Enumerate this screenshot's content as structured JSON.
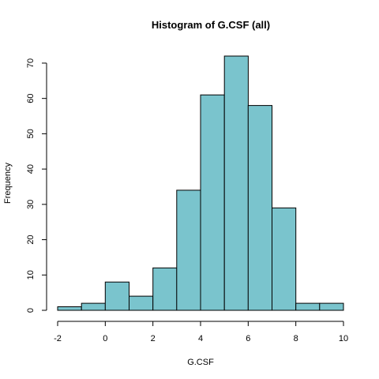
{
  "chart_data": {
    "type": "bar",
    "title": "Histogram of G.CSF (all)",
    "xlabel": "G.CSF",
    "ylabel": "Frequency",
    "bin_edges": [
      -2,
      -1,
      0,
      1,
      2,
      3,
      4,
      5,
      6,
      7,
      8,
      9,
      10
    ],
    "values": [
      1,
      2,
      8,
      4,
      12,
      34,
      61,
      72,
      58,
      29,
      2,
      2
    ],
    "xlim": [
      -2,
      10
    ],
    "ylim": [
      0,
      72
    ],
    "x_ticks": [
      -2,
      0,
      2,
      4,
      6,
      8,
      10
    ],
    "y_ticks": [
      0,
      10,
      20,
      30,
      40,
      50,
      60,
      70
    ],
    "bar_color": "#7ac4cd",
    "grid": false,
    "legend": "none"
  }
}
